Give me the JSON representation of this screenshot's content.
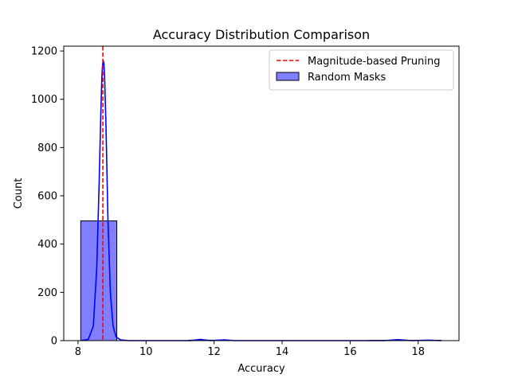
{
  "chart_data": {
    "type": "bar",
    "title": "Accuracy Distribution Comparison",
    "xlabel": "Accuracy",
    "ylabel": "Count",
    "xlim": [
      7.58,
      19.2
    ],
    "ylim": [
      0,
      1220
    ],
    "xticks": [
      8,
      10,
      12,
      14,
      16,
      18
    ],
    "yticks": [
      0,
      200,
      400,
      600,
      800,
      1000,
      1200
    ],
    "grid": false,
    "legend_position": "top-right",
    "histogram": {
      "name": "Random Masks",
      "bins": [
        {
          "x0": 8.08,
          "x1": 9.14,
          "count": 496
        },
        {
          "x0": 9.14,
          "x1": 10.2,
          "count": 0
        },
        {
          "x0": 10.2,
          "x1": 11.26,
          "count": 0
        },
        {
          "x0": 11.26,
          "x1": 12.32,
          "count": 2
        },
        {
          "x0": 12.32,
          "x1": 13.38,
          "count": 0
        },
        {
          "x0": 13.38,
          "x1": 14.44,
          "count": 0
        },
        {
          "x0": 14.44,
          "x1": 15.5,
          "count": 0
        },
        {
          "x0": 15.5,
          "x1": 16.56,
          "count": 0
        },
        {
          "x0": 16.56,
          "x1": 17.62,
          "count": 1
        },
        {
          "x0": 17.62,
          "x1": 18.68,
          "count": 1
        }
      ],
      "color": "#0000ff"
    },
    "kde": {
      "name": "Random Masks",
      "color": "#0000ff",
      "x": [
        8.08,
        8.3,
        8.45,
        8.55,
        8.62,
        8.67,
        8.7,
        8.72,
        8.74,
        8.76,
        8.78,
        8.82,
        8.88,
        8.95,
        9.03,
        9.12,
        9.25,
        9.5,
        10.5,
        11.3,
        11.6,
        11.9,
        12.3,
        12.6,
        13.5,
        15.5,
        17.0,
        17.4,
        17.8,
        18.3,
        18.68
      ],
      "y": [
        0,
        5,
        60,
        300,
        650,
        940,
        1090,
        1140,
        1160,
        1150,
        1100,
        900,
        500,
        200,
        60,
        15,
        3,
        0,
        0,
        0,
        5,
        0,
        3,
        0,
        0,
        0,
        0,
        4,
        0,
        2,
        0
      ]
    },
    "vline": {
      "name": "Magnitude-based Pruning",
      "x": 8.73,
      "color": "#ff0000",
      "style": "dashed"
    },
    "legend": [
      "Magnitude-based Pruning",
      "Random Masks"
    ]
  }
}
